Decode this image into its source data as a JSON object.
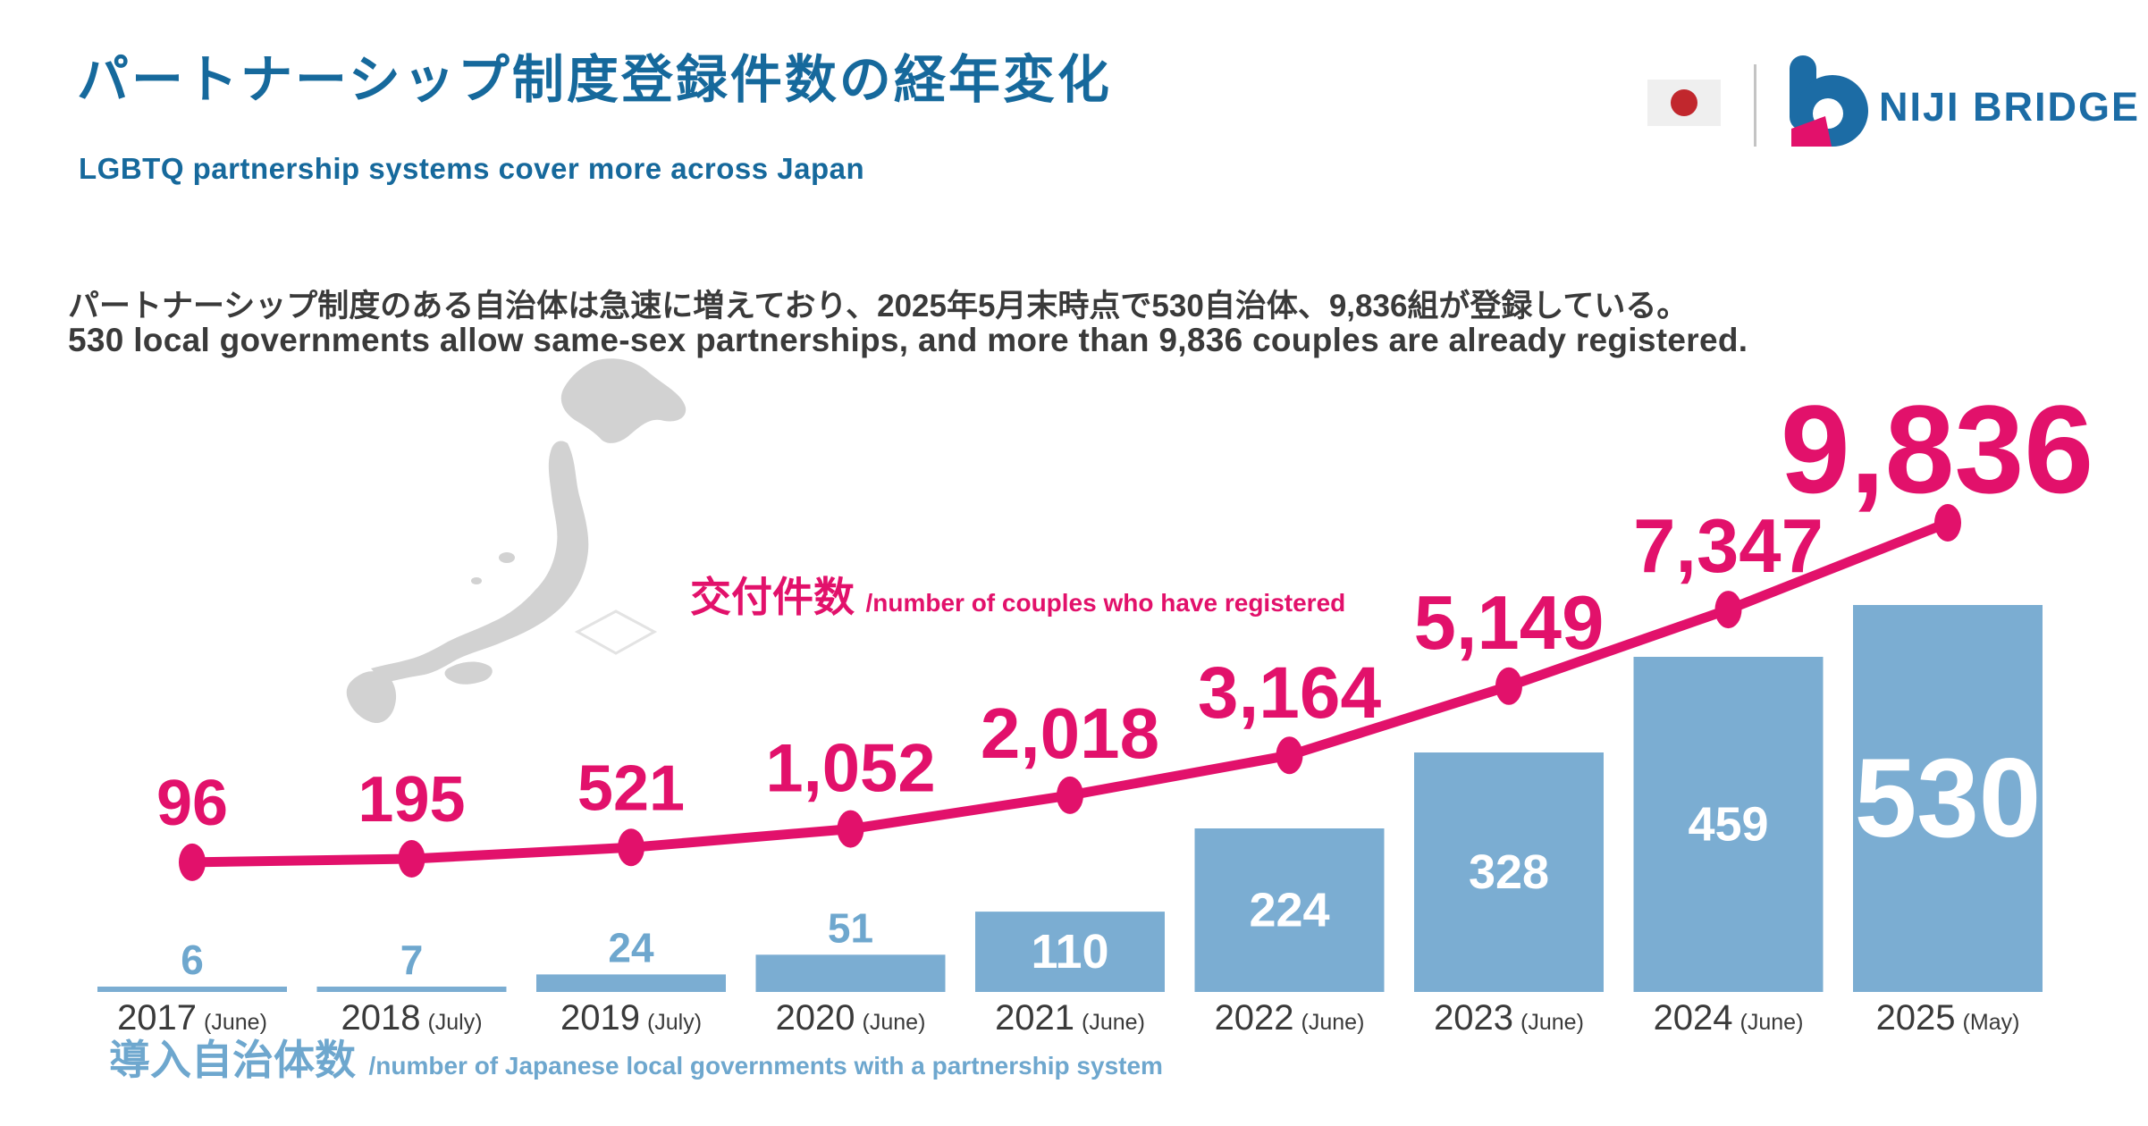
{
  "header": {
    "title": "パートナーシップ制度登録件数の経年変化",
    "subtitle": "LGBTQ partnership systems cover more across Japan",
    "brand_name": "NIJI BRIDGE"
  },
  "description": {
    "jp": "パートナーシップ制度のある自治体は急速に増えており、2025年5月末時点で530自治体、9,836組が登録している。",
    "en": "530 local governments allow same-sex partnerships, and more than 9,836 couples are already registered."
  },
  "chart_data": {
    "type": "bar+line combo",
    "categories": [
      "2017",
      "2018",
      "2019",
      "2020",
      "2021",
      "2022",
      "2023",
      "2024",
      "2025"
    ],
    "category_months": [
      "(June)",
      "(July)",
      "(July)",
      "(June)",
      "(June)",
      "(June)",
      "(June)",
      "(June)",
      "(May)"
    ],
    "series": [
      {
        "name": "導入自治体数",
        "name_en": "/number of Japanese local governments with a partnership system",
        "type": "bar",
        "values": [
          6,
          7,
          24,
          51,
          110,
          224,
          328,
          459,
          530
        ]
      },
      {
        "name": "交付件数",
        "name_en": "/number of couples who have registered",
        "type": "line",
        "values": [
          96,
          195,
          521,
          1052,
          2018,
          3164,
          5149,
          7347,
          9836
        ]
      }
    ],
    "title": "パートナーシップ制度登録件数の経年変化",
    "xlabel": "",
    "ylabel": "",
    "grid": false,
    "legend_position": "inline-labels",
    "bar_ylim": [
      0,
      530
    ],
    "line_ylim": [
      0,
      9836
    ]
  },
  "colors": {
    "title_blue": "#16699c",
    "logo_blue": "#1c6ca5",
    "text_dark": "#3a3a3a",
    "accent_pink": "#e2116b",
    "bar_blue": "#7badd2",
    "bar_label_blue": "#6ea7ce",
    "bar_value_white": "#ffffff",
    "axis_text": "#3a3a3a",
    "flag_red": "#c1272d",
    "flag_bg": "#efefef",
    "map_gray": "#d2d2d2"
  }
}
